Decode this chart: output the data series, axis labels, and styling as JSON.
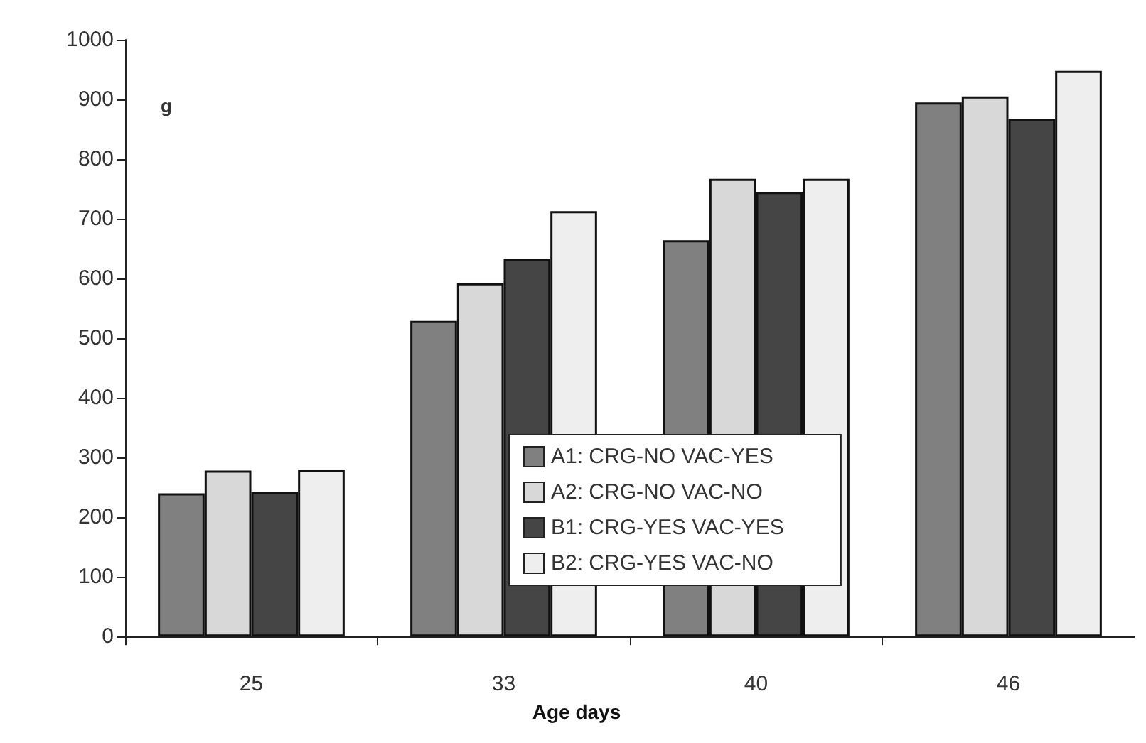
{
  "chart_data": {
    "type": "bar",
    "xlabel": "Age days",
    "ylabel": "g",
    "categories": [
      "25",
      "33",
      "40",
      "46"
    ],
    "series": [
      {
        "name": "A1: CRG-NO VAC-YES",
        "color": "#808080",
        "values": [
          240,
          529,
          664,
          895
        ]
      },
      {
        "name": "A2: CRG-NO VAC-NO",
        "color": "#d8d8d8",
        "values": [
          278,
          592,
          767,
          905
        ]
      },
      {
        "name": "B1: CRG-YES VAC-YES",
        "color": "#454545",
        "values": [
          243,
          633,
          745,
          868
        ]
      },
      {
        "name": "B2: CRG-YES VAC-NO",
        "color": "#eeeeee",
        "values": [
          280,
          713,
          767,
          948
        ]
      }
    ],
    "ylim": [
      0,
      1000
    ],
    "yticks": [
      0,
      100,
      200,
      300,
      400,
      500,
      600,
      700,
      800,
      900,
      1000
    ],
    "grid": false,
    "legend": "bottom"
  }
}
